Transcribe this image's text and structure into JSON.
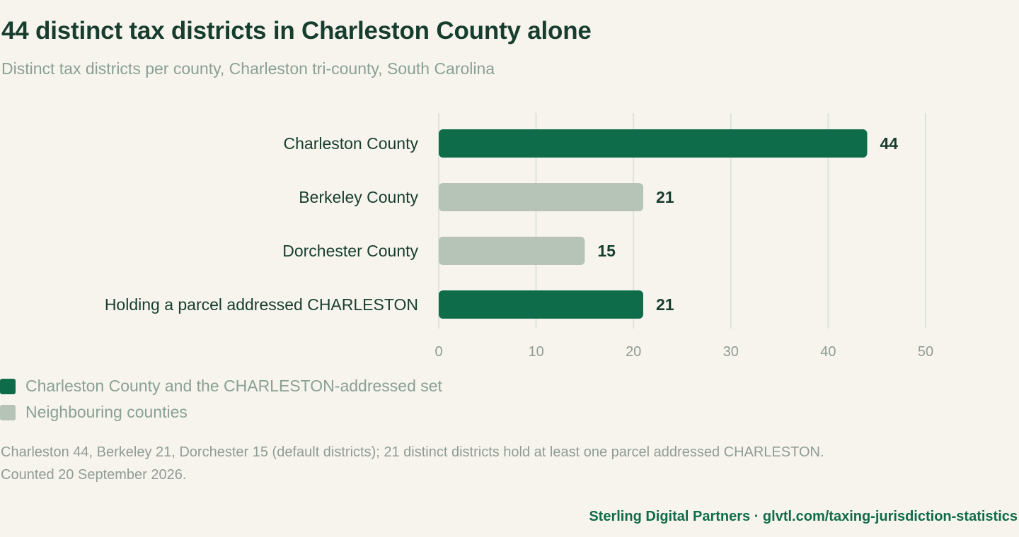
{
  "header": {
    "title": "44 distinct tax districts in Charleston County alone",
    "subtitle": "Distinct tax districts per county, Charleston tri-county, South Carolina"
  },
  "chart_data": {
    "type": "bar",
    "orientation": "horizontal",
    "categories": [
      "Charleston County",
      "Berkeley County",
      "Dorchester County",
      "Holding a parcel addressed CHARLESTON"
    ],
    "values": [
      44,
      21,
      15,
      21
    ],
    "groups": [
      0,
      1,
      1,
      0
    ],
    "data_labels": [
      "44",
      "21",
      "15",
      "21"
    ],
    "xlim": [
      0,
      50
    ],
    "xticks": [
      0,
      10,
      20,
      30,
      40,
      50
    ],
    "grid": "vertical",
    "legend_placement": "bottom-left",
    "colors": [
      "#0e6c4a",
      "#b6c4b7"
    ]
  },
  "legend": {
    "items": [
      {
        "label": "Charleston County and the CHARLESTON-addressed set",
        "color": "#0e6c4a"
      },
      {
        "label": "Neighbouring counties",
        "color": "#b6c4b7"
      }
    ]
  },
  "note": "Charleston 44, Berkeley 21, Dorchester 15 (default districts); 21 distinct districts hold at least one parcel addressed CHARLESTON. Counted 20 September 2026.",
  "footer": "Sterling Digital Partners · glvtl.com/taxing-jurisdiction-statistics"
}
